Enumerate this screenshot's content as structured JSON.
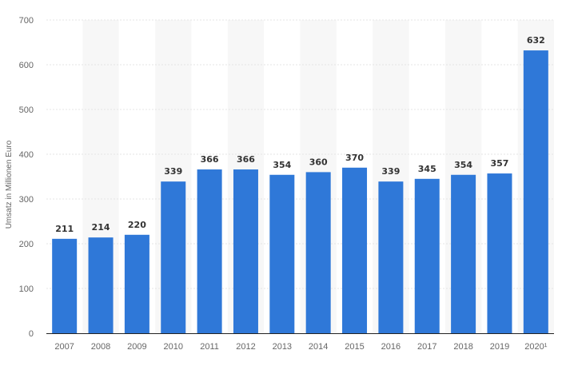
{
  "chart_data": {
    "type": "bar",
    "categories": [
      "2007",
      "2008",
      "2009",
      "2010",
      "2011",
      "2012",
      "2013",
      "2014",
      "2015",
      "2016",
      "2017",
      "2018",
      "2019",
      "2020¹"
    ],
    "values": [
      211,
      214,
      220,
      339,
      366,
      366,
      354,
      360,
      370,
      339,
      345,
      354,
      357,
      632
    ],
    "value_labels": [
      "211",
      "214",
      "220",
      "339",
      "366",
      "366",
      "354",
      "360",
      "370",
      "339",
      "345",
      "354",
      "357",
      "632"
    ],
    "title": "",
    "xlabel": "",
    "ylabel": "Umsatz in Millionen Euro",
    "ylim": [
      0,
      700
    ],
    "yticks": [
      "0",
      "100",
      "200",
      "300",
      "400",
      "500",
      "600",
      "700"
    ],
    "ytick_values": [
      0,
      100,
      200,
      300,
      400,
      500,
      600,
      700
    ],
    "grid": true,
    "legend": "none",
    "colors": {
      "bar": "#2f78d8",
      "band": "#f7f7f7",
      "grid": "#e4e4e4",
      "axis": "#222222"
    }
  }
}
